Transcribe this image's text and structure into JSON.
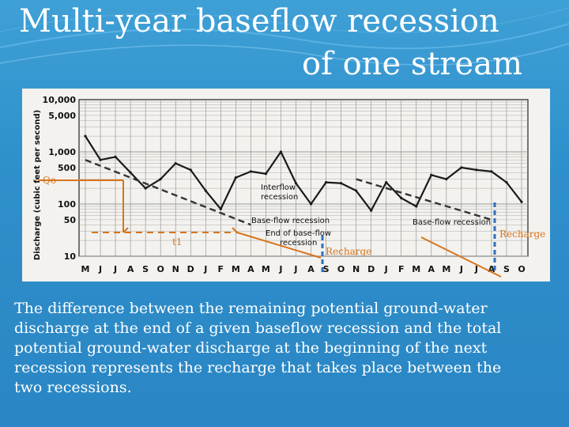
{
  "slide": {
    "title_line1": "Multi-year baseflow recession",
    "title_line2": "of one stream",
    "caption_lines": [
      "The difference between the remaining potential ground-water",
      "discharge at the end of a given baseflow recession and the total",
      "potential ground-water discharge at the beginning of the next",
      "recession represents the recharge that takes place between the",
      "two recessions."
    ]
  },
  "colors": {
    "background": "#2f8fcb",
    "accent": "#d8741c",
    "blue_marker": "#2e6fc0"
  },
  "chart_data": {
    "type": "line",
    "ylabel": "Discharge (cubic feet per second)",
    "yscale": "log",
    "ylim": [
      10,
      10000
    ],
    "y_ticks": [
      "10,000",
      "5,000",
      "1,000",
      "500",
      "100",
      "50",
      "10"
    ],
    "y_tick_values": [
      10000,
      5000,
      1000,
      500,
      100,
      50,
      10
    ],
    "x_ticks": [
      "M",
      "J",
      "J",
      "A",
      "S",
      "O",
      "N",
      "D",
      "J",
      "F",
      "M",
      "A",
      "M",
      "J",
      "J",
      "A",
      "S",
      "O",
      "N",
      "D",
      "J",
      "F",
      "M",
      "A",
      "M",
      "J",
      "J",
      "A",
      "S",
      "O"
    ],
    "series": [
      {
        "values": [
          2000,
          700,
          800,
          400,
          200,
          300,
          600,
          450,
          180,
          80,
          320,
          420,
          380,
          1000,
          250,
          100,
          260,
          250,
          180,
          75,
          260,
          130,
          90,
          360,
          300,
          500,
          450,
          420,
          260,
          110
        ]
      }
    ],
    "recession_lines": [
      {
        "from": [
          0,
          700
        ],
        "to": [
          11,
          40
        ]
      },
      {
        "from": [
          18,
          300
        ],
        "to": [
          27,
          50
        ]
      }
    ],
    "annotations": {
      "q0": "Qo",
      "t1": "t1",
      "interflow": "Interflow recession",
      "baseflow1": "Base-flow recession",
      "end_baseflow": "End of base-flow recession",
      "baseflow2": "Base-flow recession",
      "recharge1": "Recharge",
      "recharge2": "Recharge"
    },
    "grid": true
  }
}
